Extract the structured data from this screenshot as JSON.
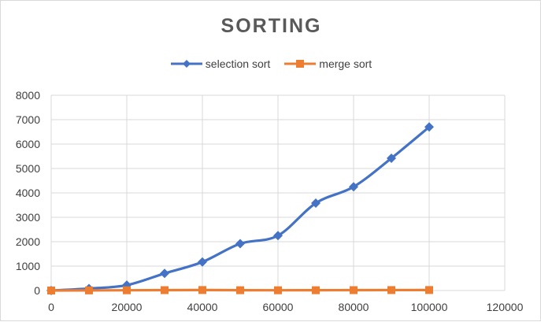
{
  "chart_data": {
    "type": "line",
    "title": "SORTING",
    "xlabel": "",
    "ylabel": "",
    "xlim": [
      0,
      120000
    ],
    "ylim": [
      0,
      8000
    ],
    "x_ticks": [
      0,
      20000,
      40000,
      60000,
      80000,
      100000,
      120000
    ],
    "y_ticks": [
      0,
      1000,
      2000,
      3000,
      4000,
      5000,
      6000,
      7000,
      8000
    ],
    "grid": true,
    "legend_position": "top",
    "x": [
      0,
      10000,
      20000,
      30000,
      40000,
      50000,
      60000,
      70000,
      80000,
      90000,
      100000
    ],
    "series": [
      {
        "name": "selection sort",
        "color": "#4472c4",
        "marker": "diamond",
        "values": [
          0,
          80,
          220,
          700,
          1170,
          1920,
          2250,
          3580,
          4250,
          5420,
          6700
        ]
      },
      {
        "name": "merge sort",
        "color": "#ed7d31",
        "marker": "square",
        "values": [
          0,
          5,
          10,
          15,
          20,
          12,
          10,
          12,
          15,
          18,
          20
        ]
      }
    ]
  }
}
